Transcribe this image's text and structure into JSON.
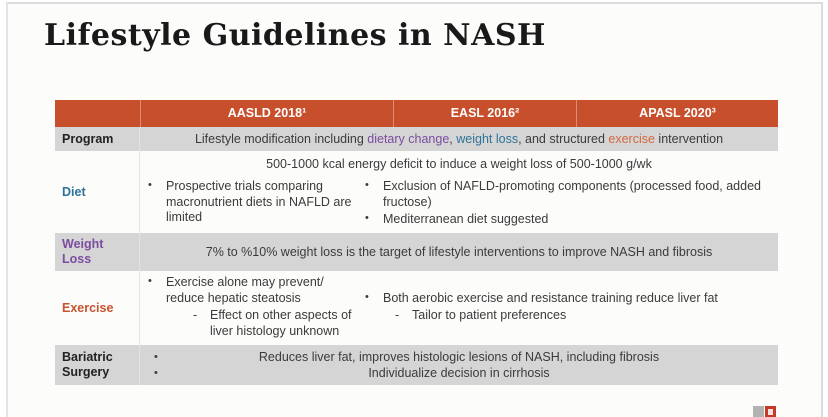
{
  "title": "Lifestyle Guidelines in NASH",
  "colors": {
    "header_bg": "#C84F2C",
    "accent_purple": "#7C4D9F",
    "accent_blue": "#2F7399",
    "accent_orange_label": "#C85430",
    "accent_orange_inline": "#D2693F",
    "row_gray": "#D5D5D5",
    "body_text": "#3B3B3B"
  },
  "glyphs": {
    "bullet": "•",
    "dash": "-"
  },
  "header": {
    "aasld": "AASLD 2018¹",
    "easl": "EASL 2016²",
    "apasl": "APASL 2020³"
  },
  "rows": {
    "program": {
      "label": "Program",
      "seg1": "Lifestyle modification including ",
      "seg2": "dietary change",
      "seg3": ", ",
      "seg4": "weight loss",
      "seg5": ", and structured ",
      "seg6": "exercise",
      "seg7": " intervention"
    },
    "diet": {
      "label": "Diet",
      "kcal_line": "500-1000 kcal energy deficit to induce a weight loss of 500-1000 g/wk",
      "left_bullet": "Prospective trials comparing macronutrient diets in NAFLD are limited",
      "right_bullet_1": "Exclusion of NAFLD-promoting components (processed food, added fructose)",
      "right_bullet_2": "Mediterranean diet suggested"
    },
    "weight_loss": {
      "label": "Weight\nLoss",
      "text": "7% to %10% weight loss is the target of lifestyle interventions to improve NASH and fibrosis"
    },
    "exercise": {
      "label": "Exercise",
      "left_bullet": "Exercise alone may prevent/ reduce hepatic steatosis",
      "left_sub_bullet": "Effect on other aspects of liver histology unknown",
      "right_bullet": "Both aerobic exercise and resistance training reduce liver fat",
      "right_sub_bullet": "Tailor to patient preferences"
    },
    "bariatric": {
      "label": "Bariatric\nSurgery",
      "line1": "Reduces liver fat, improves histologic lesions of NASH, including fibrosis",
      "line2": "Individualize decision in cirrhosis"
    }
  }
}
